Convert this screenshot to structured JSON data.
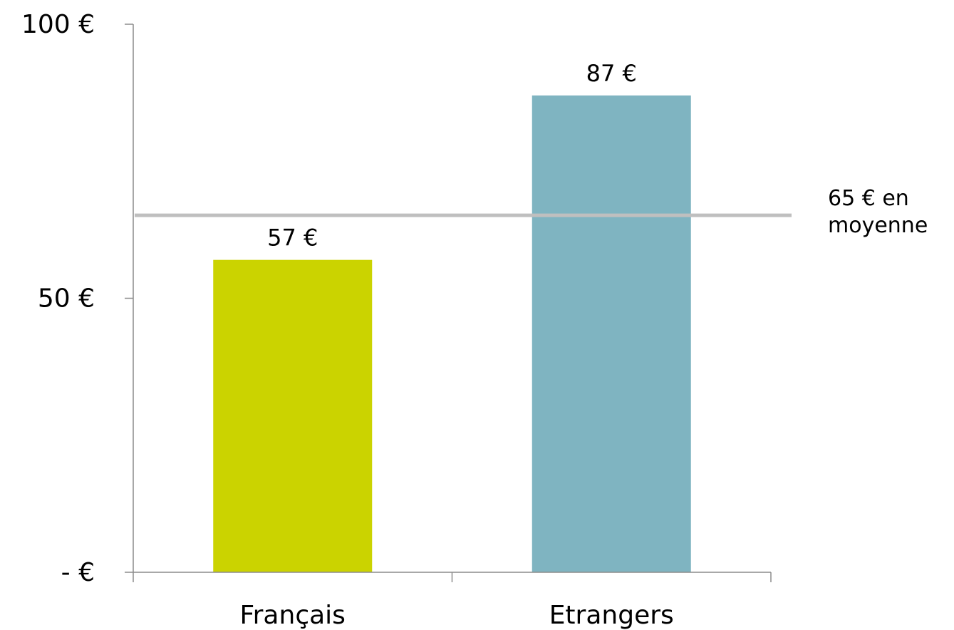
{
  "chart_data": {
    "type": "bar",
    "categories": [
      "Français",
      "Etrangers"
    ],
    "values": [
      57,
      87
    ],
    "data_labels": [
      "57 €",
      "87 €"
    ],
    "ylim": [
      0,
      100
    ],
    "yticks": [
      {
        "value": 0,
        "label": "-   €"
      },
      {
        "value": 50,
        "label": "50 €"
      },
      {
        "value": 100,
        "label": "100 €"
      }
    ],
    "reference_line": {
      "value": 65,
      "label_lines": [
        "65 € en",
        "moyenne"
      ],
      "color": "#bfbfbf"
    },
    "colors": [
      "#cbd300",
      "#7fb4c1"
    ],
    "grid": false,
    "legend": "none"
  }
}
